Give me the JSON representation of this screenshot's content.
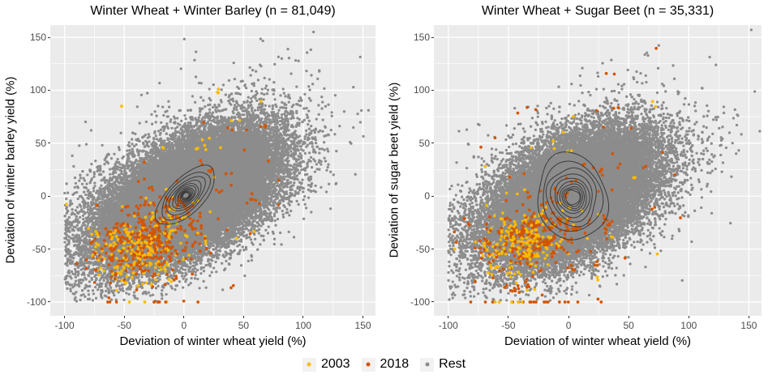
{
  "legend": {
    "key_bg": "#F2F2F2",
    "items": [
      {
        "label": "2003",
        "color": "#FBBA00"
      },
      {
        "label": "2018",
        "color": "#D35400"
      },
      {
        "label": "Rest",
        "color": "#8C8C8C"
      }
    ]
  },
  "chart_data": [
    {
      "type": "scatter",
      "title": "Winter Wheat + Winter Barley (n = 81,049)",
      "xlabel": "Deviation of winter wheat yield (%)",
      "ylabel": "Deviation of winter barley yield (%)",
      "n": "81,049",
      "xlim": [
        -112,
        160.5
      ],
      "ylim": [
        -113,
        161.5
      ],
      "xticks": [
        -100,
        -50,
        0,
        50,
        100,
        150
      ],
      "yticks": [
        -100,
        -50,
        0,
        50,
        100,
        150
      ],
      "panel_bg": "#EBEBEB",
      "grid_major": "#FFFFFF",
      "series": [
        {
          "name": "Rest",
          "color": "#8C8C8C",
          "r": 1.65,
          "n_plotted": 40000,
          "seed": 101,
          "row_p": 0.2,
          "components": [
            {
              "w": 0.81,
              "mean": [
                4,
                -1
              ],
              "sd": [
                33,
                30
              ],
              "rho": 0.54
            },
            {
              "w": 0.16,
              "mean": [
                0,
                -2
              ],
              "sd": [
                45,
                38
              ],
              "rho": 0.55,
              "y_neg_scale": 0.85,
              "y_pos_scale": 0.85
            },
            {
              "w": 0.03,
              "mean": [
                5,
                5
              ],
              "sd": [
                50,
                52
              ],
              "rho": 0.55,
              "y_neg_scale": 0.7
            }
          ]
        },
        {
          "name": "2003",
          "color": "#FBBA00",
          "r": 1.85,
          "n_plotted": 175,
          "seed": 102,
          "row_p": 0.4,
          "clump_p": 0.35,
          "components": [
            {
              "w": 0.83,
              "mean": [
                -37,
                -50
              ],
              "sd": [
                18,
                16
              ],
              "rho": 0.3
            },
            {
              "w": 0.14,
              "mean": [
                -5,
                5
              ],
              "sd": [
                42,
                48
              ],
              "rho": 0.15
            },
            {
              "w": 0.03,
              "mean": [
                -30,
                0
              ],
              "sd": [
                22,
                0
              ],
              "rho": 0,
              "fix_y": -100
            }
          ]
        },
        {
          "name": "2018",
          "color": "#D35400",
          "r": 1.85,
          "n_plotted": 280,
          "seed": 103,
          "row_p": 0.4,
          "clump_p": 0.35,
          "components": [
            {
              "w": 0.79,
              "mean": [
                -30,
                -45
              ],
              "sd": [
                23,
                20
              ],
              "rho": 0.35
            },
            {
              "w": 0.18,
              "mean": [
                8,
                0
              ],
              "sd": [
                45,
                45
              ],
              "rho": 0.3
            },
            {
              "w": 0.03,
              "mean": [
                -25,
                0
              ],
              "sd": [
                26,
                0
              ],
              "rho": 0,
              "fix_y": -100
            }
          ]
        }
      ],
      "contours": {
        "center": [
          1.5,
          0.5
        ],
        "levels": 12,
        "a_outer": 34,
        "b_outer": 15.5,
        "angle_deg": 50,
        "ratio_a": 0.8,
        "ratio_b": 0.84,
        "drift": 0.35,
        "wobble": 0.025,
        "color": "#333333",
        "seed": 7
      }
    },
    {
      "type": "scatter",
      "title": "Winter Wheat + Sugar Beet (n = 35,331)",
      "xlabel": "Deviation of winter wheat yield (%)",
      "ylabel": "Deviation of sugar beet yield (%)",
      "n": "35,331",
      "xlim": [
        -112,
        160.5
      ],
      "ylim": [
        -113,
        161.5
      ],
      "xticks": [
        -100,
        -50,
        0,
        50,
        100,
        150
      ],
      "yticks": [
        -100,
        -50,
        0,
        50,
        100,
        150
      ],
      "panel_bg": "#EBEBEB",
      "grid_major": "#FFFFFF",
      "series": [
        {
          "name": "Rest",
          "color": "#8C8C8C",
          "r": 1.65,
          "n_plotted": 32000,
          "seed": 201,
          "row_p": 0.22,
          "components": [
            {
              "w": 0.81,
              "mean": [
                3,
                -1
              ],
              "sd": [
                32,
                30
              ],
              "rho": 0.47
            },
            {
              "w": 0.16,
              "mean": [
                0,
                -2
              ],
              "sd": [
                44,
                38
              ],
              "rho": 0.5,
              "y_neg_scale": 0.85,
              "y_pos_scale": 0.85
            },
            {
              "w": 0.03,
              "mean": [
                5,
                5
              ],
              "sd": [
                48,
                50
              ],
              "rho": 0.5,
              "y_neg_scale": 0.7
            }
          ]
        },
        {
          "name": "2003",
          "color": "#FBBA00",
          "r": 1.85,
          "n_plotted": 160,
          "seed": 202,
          "row_p": 0.4,
          "clump_p": 0.35,
          "components": [
            {
              "w": 0.81,
              "mean": [
                -40,
                -46
              ],
              "sd": [
                18,
                17
              ],
              "rho": 0.3
            },
            {
              "w": 0.15,
              "mean": [
                -5,
                0
              ],
              "sd": [
                42,
                46
              ],
              "rho": 0.15
            },
            {
              "w": 0.04,
              "mean": [
                -35,
                0
              ],
              "sd": [
                18,
                0
              ],
              "rho": 0,
              "fix_y": -100
            }
          ]
        },
        {
          "name": "2018",
          "color": "#D35400",
          "r": 1.85,
          "n_plotted": 250,
          "seed": 203,
          "row_p": 0.4,
          "clump_p": 0.35,
          "components": [
            {
              "w": 0.78,
              "mean": [
                -30,
                -40
              ],
              "sd": [
                24,
                21
              ],
              "rho": 0.35
            },
            {
              "w": 0.18,
              "mean": [
                5,
                0
              ],
              "sd": [
                46,
                48
              ],
              "rho": 0.25
            },
            {
              "w": 0.04,
              "mean": [
                -28,
                0
              ],
              "sd": [
                22,
                0
              ],
              "rho": 0,
              "fix_y": -100
            }
          ]
        }
      ],
      "contours": {
        "center": [
          3,
          -1
        ],
        "levels": 10,
        "a_outer": 41,
        "b_outer": 29,
        "angle_deg": 96,
        "ratio_a": 0.82,
        "ratio_b": 0.84,
        "drift": 0.45,
        "wobble": 0.04,
        "color": "#333333",
        "seed": 9
      }
    }
  ]
}
